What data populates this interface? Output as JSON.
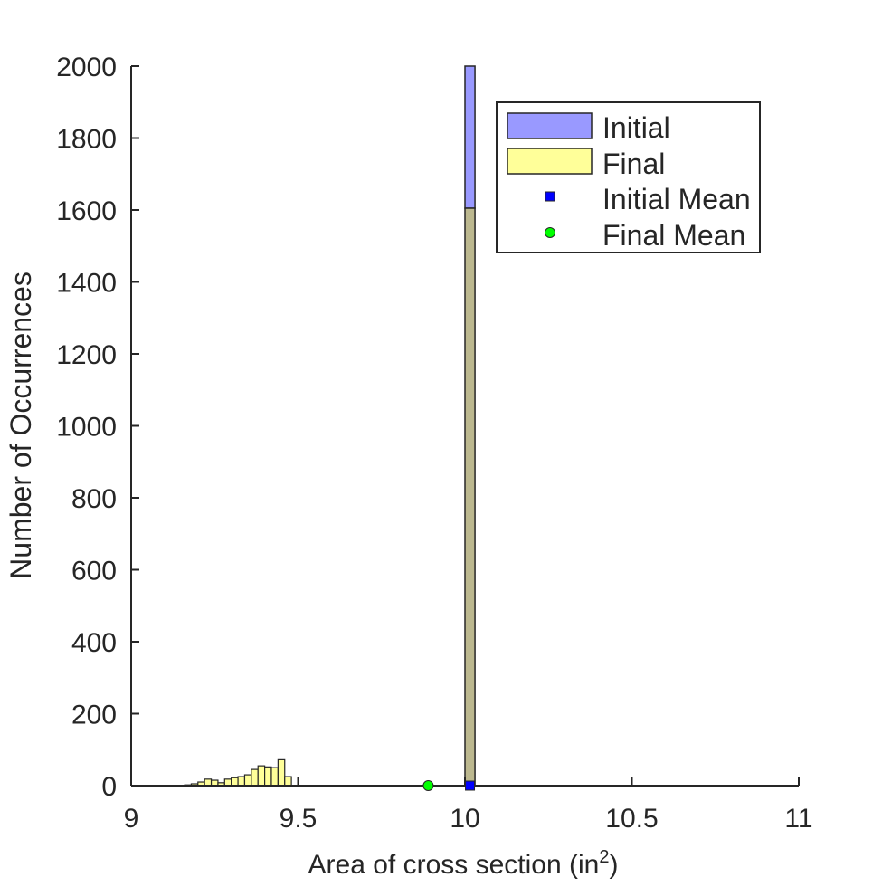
{
  "chart_data": {
    "type": "bar",
    "title": "",
    "xlabel": "Area of cross section (in",
    "xlabel_superscript": "2",
    "xlabel_suffix": ")",
    "ylabel": "Number of Occurrences",
    "xlim": [
      9,
      11
    ],
    "ylim": [
      0,
      2000
    ],
    "xticks": [
      "9",
      "9.5",
      "10",
      "10.5",
      "11"
    ],
    "xtick_values": [
      9,
      9.5,
      10,
      10.5,
      11
    ],
    "yticks": [
      "0",
      "200",
      "400",
      "600",
      "800",
      "1000",
      "1200",
      "1400",
      "1600",
      "1800",
      "2000"
    ],
    "ytick_values": [
      0,
      200,
      400,
      600,
      800,
      1000,
      1200,
      1400,
      1600,
      1800,
      2000
    ],
    "grid": false,
    "legend_position": "top-right",
    "series": [
      {
        "name": "Initial",
        "color": "#9999ff",
        "bins": [
          {
            "x0": 10.0,
            "x1": 10.03,
            "count": 2000
          }
        ]
      },
      {
        "name": "Final",
        "color": "#ffff99",
        "bins": [
          {
            "x0": 9.16,
            "x1": 9.18,
            "count": 2
          },
          {
            "x0": 9.18,
            "x1": 9.2,
            "count": 5
          },
          {
            "x0": 9.2,
            "x1": 9.22,
            "count": 10
          },
          {
            "x0": 9.22,
            "x1": 9.24,
            "count": 18
          },
          {
            "x0": 9.24,
            "x1": 9.26,
            "count": 15
          },
          {
            "x0": 9.26,
            "x1": 9.28,
            "count": 8
          },
          {
            "x0": 9.28,
            "x1": 9.3,
            "count": 18
          },
          {
            "x0": 9.3,
            "x1": 9.32,
            "count": 22
          },
          {
            "x0": 9.32,
            "x1": 9.34,
            "count": 25
          },
          {
            "x0": 9.34,
            "x1": 9.36,
            "count": 30
          },
          {
            "x0": 9.36,
            "x1": 9.38,
            "count": 45
          },
          {
            "x0": 9.38,
            "x1": 9.4,
            "count": 55
          },
          {
            "x0": 9.4,
            "x1": 9.42,
            "count": 52
          },
          {
            "x0": 9.42,
            "x1": 9.44,
            "count": 50
          },
          {
            "x0": 9.44,
            "x1": 9.46,
            "count": 72
          },
          {
            "x0": 9.46,
            "x1": 9.48,
            "count": 25
          },
          {
            "x0": 10.0,
            "x1": 10.03,
            "count": 1605
          }
        ]
      }
    ],
    "overlap_color": "#bcb88f",
    "means": [
      {
        "name": "Initial Mean",
        "x": 10.015,
        "y": 0,
        "color": "#0000ff",
        "marker": "square"
      },
      {
        "name": "Final Mean",
        "x": 9.89,
        "y": 0,
        "color": "#00ff00",
        "marker": "circle"
      }
    ],
    "legend": [
      "Initial",
      "Final",
      "Initial Mean",
      "Final Mean"
    ]
  }
}
